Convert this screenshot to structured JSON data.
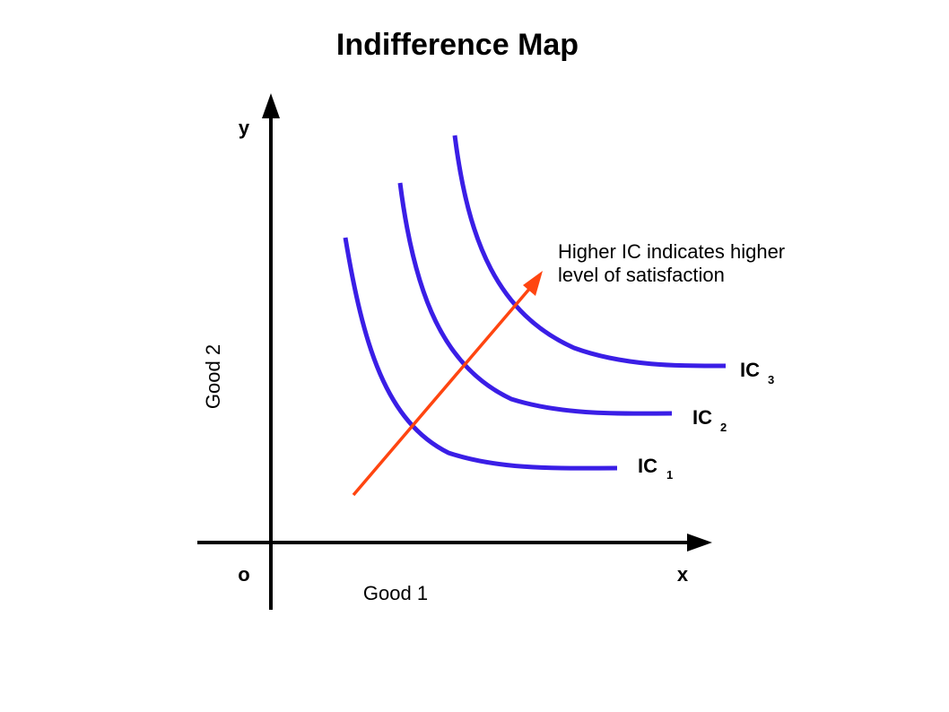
{
  "title": "Indifference Map",
  "axes": {
    "y_letter": "y",
    "x_letter": "x",
    "origin_label": "o",
    "x_name": "Good 1",
    "y_name": "Good 2"
  },
  "curves": [
    {
      "name": "IC",
      "subscript": "1"
    },
    {
      "name": "IC",
      "subscript": "2"
    },
    {
      "name": "IC",
      "subscript": "3"
    }
  ],
  "annotation": {
    "line1": "Higher IC indicates higher",
    "line2": "level of satisfaction"
  },
  "colors": {
    "curve": "#3a1ee6",
    "arrow": "#ff4510",
    "axis": "#000000"
  }
}
